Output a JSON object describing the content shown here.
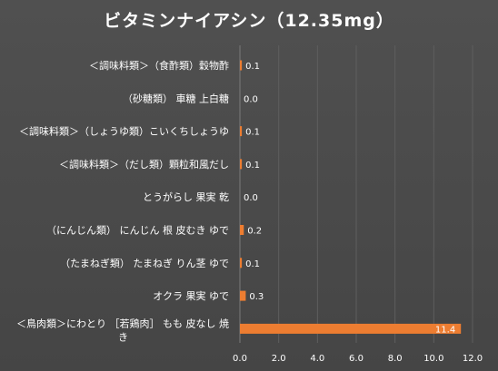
{
  "chart_data": {
    "type": "bar",
    "orientation": "horizontal",
    "title": "ビタミンナイアシン（12.35mg）",
    "categories": [
      "＜調味料類＞（食酢類）穀物酢",
      "（砂糖類） 車糖 上白糖",
      "＜調味料類＞（しょうゆ類）こいくちしょうゆ",
      "＜調味料類＞（だし類）顆粒和風だし",
      "とうがらし 果実 乾",
      "（にんじん類） にんじん 根 皮むき ゆで",
      "（たまねぎ類） たまねぎ りん茎 ゆで",
      "オクラ 果実 ゆで",
      "＜鳥肉類＞にわとり ［若鶏肉］ もも 皮なし 焼き"
    ],
    "values": [
      0.1,
      0.0,
      0.1,
      0.1,
      0.0,
      0.2,
      0.1,
      0.3,
      11.4
    ],
    "value_labels": [
      "0.1",
      "0.0",
      "0.1",
      "0.1",
      "0.0",
      "0.2",
      "0.1",
      "0.3",
      "11.4"
    ],
    "xlim": [
      0,
      12
    ],
    "xticks": [
      "0.0",
      "2.0",
      "4.0",
      "6.0",
      "8.0",
      "10.0",
      "12.0"
    ],
    "xlabel": "",
    "ylabel": "",
    "grid": true,
    "legend": "none",
    "colors": {
      "bar": "#ed7d31",
      "background": "#4a4a4a",
      "grid": "#5e5e5e",
      "text": "#ffffff"
    }
  }
}
